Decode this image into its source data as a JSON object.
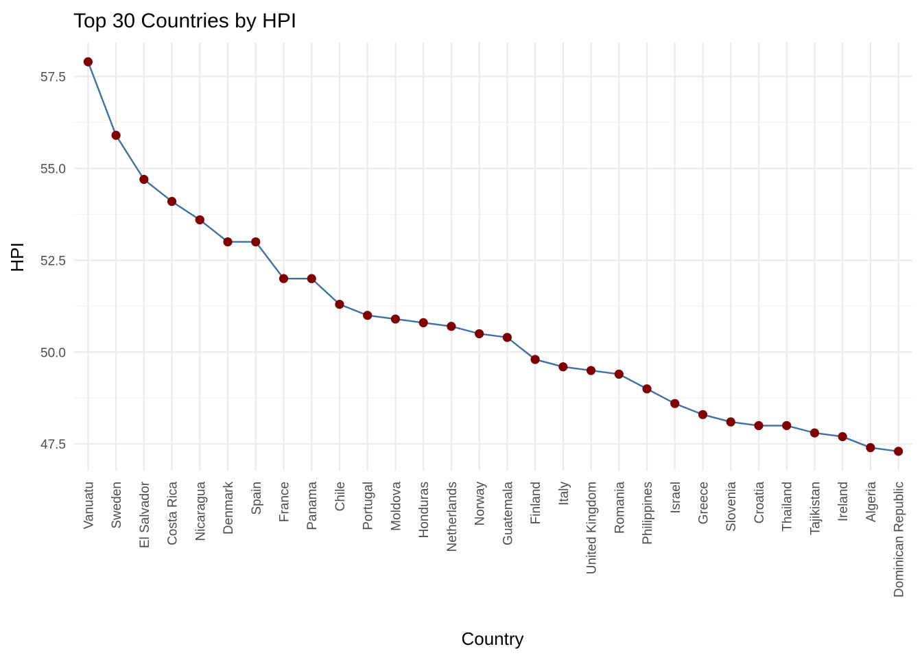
{
  "chart_data": {
    "type": "line",
    "title": "Top 30 Countries by HPI",
    "xlabel": "Country",
    "ylabel": "HPI",
    "categories": [
      "Vanuatu",
      "Sweden",
      "El Salvador",
      "Costa Rica",
      "Nicaragua",
      "Denmark",
      "Spain",
      "France",
      "Panama",
      "Chile",
      "Portugal",
      "Moldova",
      "Honduras",
      "Netherlands",
      "Norway",
      "Guatemala",
      "Finland",
      "Italy",
      "United Kingdom",
      "Romania",
      "Philippines",
      "Israel",
      "Greece",
      "Slovenia",
      "Croatia",
      "Thailand",
      "Tajikistan",
      "Ireland",
      "Algeria",
      "Dominican Republic"
    ],
    "series": [
      {
        "values": [
          57.9,
          55.9,
          54.7,
          54.1,
          53.6,
          53.0,
          53.0,
          52.0,
          52.0,
          51.3,
          51.0,
          50.9,
          50.8,
          50.7,
          50.5,
          50.4,
          49.8,
          49.6,
          49.5,
          49.4,
          49.0,
          48.6,
          48.3,
          48.1,
          48.0,
          48.0,
          47.8,
          47.7,
          47.4,
          47.3
        ]
      }
    ],
    "y_ticks": [
      47.5,
      50.0,
      52.5,
      55.0,
      57.5
    ],
    "y_tick_labels": [
      "47.5",
      "50.0",
      "52.5",
      "55.0",
      "57.5"
    ],
    "ylim": [
      46.775,
      58.425
    ],
    "grid": true,
    "legend": "none",
    "colors": {
      "line": "#3e6fa5",
      "point": "#7f0000",
      "grid": "#ebebeb"
    }
  }
}
